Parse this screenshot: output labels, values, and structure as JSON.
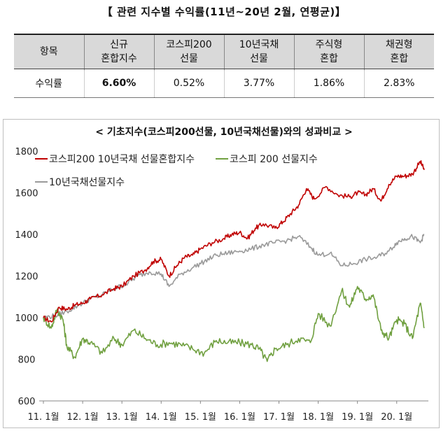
{
  "page_title": "【 관련 지수별 수익률(11년~20년 2월, 연평균)】",
  "returns_table": {
    "header_label": "항목",
    "columns": [
      "신규\n혼합지수",
      "코스피200\n선물",
      "10년국채\n선물",
      "주식형\n혼합",
      "채권형\n혼합"
    ],
    "row_label": "수익률",
    "values": [
      "6.60%",
      "0.52%",
      "3.77%",
      "1.86%",
      "2.83%"
    ]
  },
  "chart_data": {
    "type": "line",
    "title": "< 기초지수(코스피200선물, 10년국채선물)와의 성과비교 >",
    "x": [
      "11. 1월",
      "12. 1월",
      "13. 1월",
      "14. 1월",
      "15. 1월",
      "16. 1월",
      "17. 1월",
      "18. 1월",
      "19. 1월",
      "20. 1월"
    ],
    "ylim": [
      600,
      1800
    ],
    "yticks": [
      600,
      800,
      1000,
      1200,
      1400,
      1600,
      1800
    ],
    "legend": [
      "코스피200 10년국채 선물혼합지수",
      "코스피 200 선물지수",
      "10년국채선물지수"
    ],
    "colors": {
      "mixed": "#c00000",
      "kospi": "#70a040",
      "bond": "#9a9a9a"
    },
    "series": [
      {
        "name": "코스피200 10년국채 선물혼합지수",
        "color": "#c00000",
        "x": [
          0,
          0.2,
          0.4,
          0.6,
          0.8,
          1.0,
          1.2,
          1.5,
          1.8,
          2.0,
          2.3,
          2.6,
          2.8,
          3.0,
          3.2,
          3.4,
          3.6,
          3.8,
          4.0,
          4.3,
          4.6,
          4.8,
          5.0,
          5.2,
          5.4,
          5.6,
          5.9,
          6.1,
          6.3,
          6.5,
          6.7,
          6.9,
          7.2,
          7.5,
          7.8,
          8.0,
          8.2,
          8.4,
          8.6,
          8.8,
          9.0,
          9.2,
          9.4,
          9.6,
          9.7
        ],
        "values": [
          1000,
          980,
          1050,
          1040,
          1060,
          1070,
          1090,
          1110,
          1140,
          1150,
          1200,
          1230,
          1270,
          1280,
          1200,
          1250,
          1290,
          1300,
          1330,
          1360,
          1380,
          1400,
          1410,
          1380,
          1430,
          1450,
          1430,
          1460,
          1500,
          1540,
          1620,
          1570,
          1630,
          1590,
          1580,
          1600,
          1590,
          1620,
          1560,
          1640,
          1680,
          1680,
          1690,
          1750,
          1710
        ]
      },
      {
        "name": "코스피 200 선물지수",
        "color": "#70a040",
        "x": [
          0,
          0.2,
          0.35,
          0.5,
          0.6,
          0.8,
          1.0,
          1.2,
          1.5,
          1.8,
          2.0,
          2.3,
          2.6,
          2.9,
          3.2,
          3.5,
          3.8,
          4.1,
          4.4,
          4.7,
          5.0,
          5.3,
          5.5,
          5.7,
          5.9,
          6.2,
          6.5,
          6.8,
          7.0,
          7.3,
          7.6,
          7.8,
          8.0,
          8.2,
          8.4,
          8.6,
          8.8,
          9.0,
          9.2,
          9.4,
          9.6,
          9.7
        ],
        "values": [
          1000,
          950,
          1040,
          990,
          860,
          810,
          900,
          880,
          830,
          900,
          870,
          940,
          900,
          870,
          880,
          870,
          850,
          830,
          890,
          880,
          880,
          870,
          850,
          790,
          850,
          870,
          900,
          880,
          1020,
          960,
          1130,
          1050,
          1150,
          1090,
          1110,
          940,
          900,
          990,
          970,
          900,
          1070,
          950
        ]
      },
      {
        "name": "10년국채선물지수",
        "color": "#9a9a9a",
        "x": [
          0,
          0.3,
          0.6,
          0.9,
          1.2,
          1.5,
          1.8,
          2.1,
          2.4,
          2.7,
          3.0,
          3.2,
          3.5,
          3.8,
          4.1,
          4.4,
          4.7,
          5.0,
          5.3,
          5.6,
          5.9,
          6.2,
          6.5,
          6.8,
          7.0,
          7.3,
          7.6,
          7.9,
          8.2,
          8.5,
          8.8,
          9.0,
          9.2,
          9.4,
          9.6,
          9.7
        ],
        "values": [
          1000,
          1010,
          1030,
          1060,
          1090,
          1110,
          1140,
          1160,
          1200,
          1220,
          1210,
          1150,
          1210,
          1240,
          1270,
          1300,
          1310,
          1320,
          1330,
          1350,
          1360,
          1370,
          1390,
          1340,
          1300,
          1310,
          1250,
          1260,
          1280,
          1290,
          1320,
          1360,
          1380,
          1390,
          1360,
          1400
        ]
      }
    ]
  }
}
